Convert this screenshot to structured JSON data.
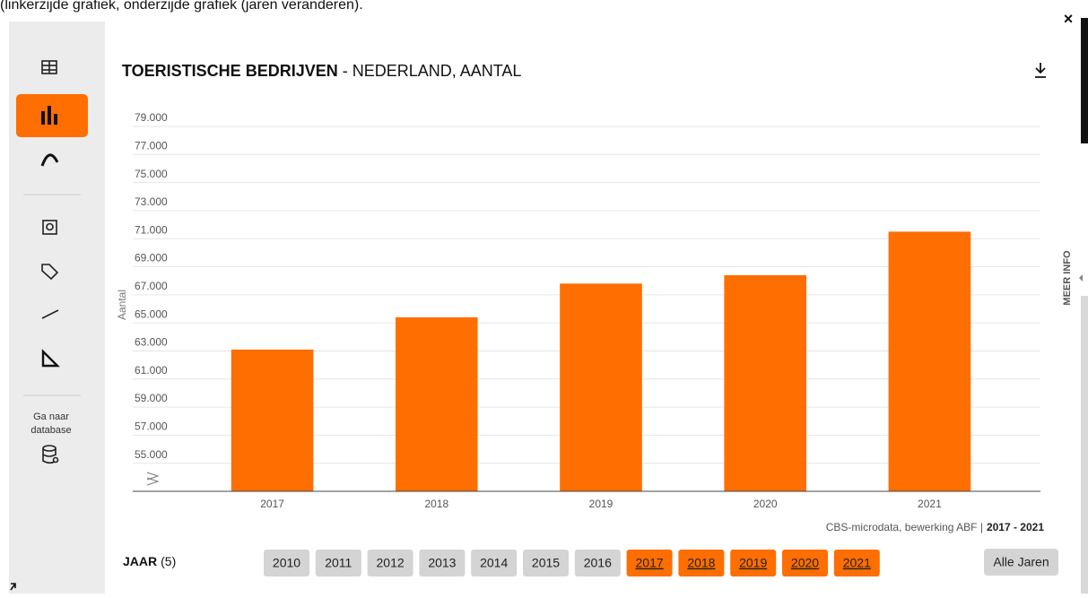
{
  "caption": "(linkerzijde grafiek, onderzijde grafiek (jaren veranderen).",
  "sidebar": {
    "database_link": [
      "Ga naar",
      "database"
    ]
  },
  "side_panel": "MEER INFO",
  "close": "×",
  "chart_data": {
    "type": "bar",
    "title": "TOERISTISCHE BEDRIJVEN",
    "subtitle": "- NEDERLAND, AANTAL",
    "y_label": "Aantal",
    "categories": [
      "2017",
      "2018",
      "2019",
      "2020",
      "2021"
    ],
    "values": [
      63100,
      65400,
      67800,
      68400,
      71500
    ],
    "color": "#ff6e00",
    "ylim": [
      53000,
      79000
    ],
    "yticks": [
      {
        "value": 55000,
        "label": "55.000"
      },
      {
        "value": 57000,
        "label": "57.000"
      },
      {
        "value": 59000,
        "label": "59.000"
      },
      {
        "value": 61000,
        "label": "61.000"
      },
      {
        "value": 63000,
        "label": "63.000"
      },
      {
        "value": 65000,
        "label": "65.000"
      },
      {
        "value": 67000,
        "label": "67.000"
      },
      {
        "value": 69000,
        "label": "69.000"
      },
      {
        "value": 71000,
        "label": "71.000"
      },
      {
        "value": 73000,
        "label": "73.000"
      },
      {
        "value": 75000,
        "label": "75.000"
      },
      {
        "value": 77000,
        "label": "77.000"
      },
      {
        "value": 79000,
        "label": "79.000"
      }
    ],
    "grid": true,
    "source": "CBS-microdata, bewerking ABF |",
    "source_period": "2017 - 2021"
  },
  "year_filter": {
    "label": "JAAR",
    "count": "(5)",
    "years": [
      {
        "label": "2010",
        "selected": false
      },
      {
        "label": "2011",
        "selected": false
      },
      {
        "label": "2012",
        "selected": false
      },
      {
        "label": "2013",
        "selected": false
      },
      {
        "label": "2014",
        "selected": false
      },
      {
        "label": "2015",
        "selected": false
      },
      {
        "label": "2016",
        "selected": false
      },
      {
        "label": "2017",
        "selected": true
      },
      {
        "label": "2018",
        "selected": true
      },
      {
        "label": "2019",
        "selected": true
      },
      {
        "label": "2020",
        "selected": true
      },
      {
        "label": "2021",
        "selected": true
      }
    ],
    "all_button": "Alle Jaren"
  }
}
